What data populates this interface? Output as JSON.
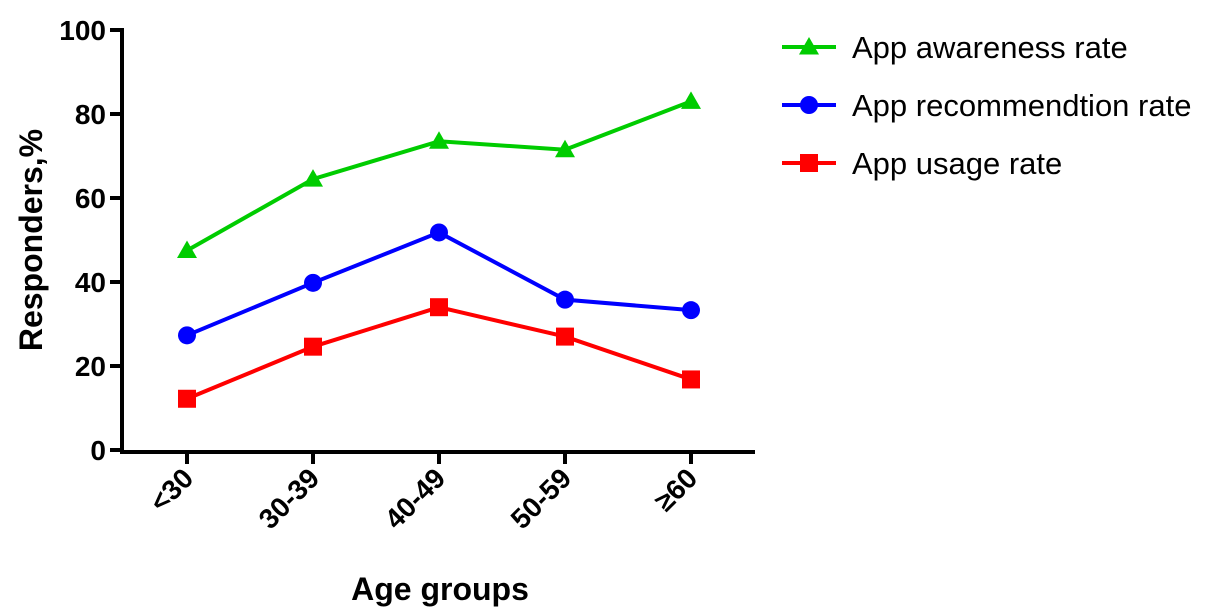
{
  "chart_data": {
    "type": "line",
    "title": "",
    "xlabel": "Age groups",
    "ylabel": "Responders,%",
    "categories": [
      "<30",
      "30-39",
      "40-49",
      "50-59",
      "≥60"
    ],
    "ylim": [
      0,
      100
    ],
    "yticks": [
      0,
      20,
      40,
      60,
      80,
      100
    ],
    "grid": false,
    "legend_position": "top-right, outside plot",
    "series": [
      {
        "name": "App awareness rate",
        "values": [
          47.5,
          64.5,
          73.5,
          71.5,
          83
        ],
        "color": "#00cc00",
        "marker": "triangle"
      },
      {
        "name": "App recommendtion rate",
        "values": [
          27.3,
          39.8,
          51.8,
          35.8,
          33.3
        ],
        "color": "#0000ff",
        "marker": "circle"
      },
      {
        "name": "App usage rate",
        "values": [
          12.2,
          24.6,
          34.0,
          27.0,
          16.8
        ],
        "color": "#ff0000",
        "marker": "square"
      }
    ]
  }
}
